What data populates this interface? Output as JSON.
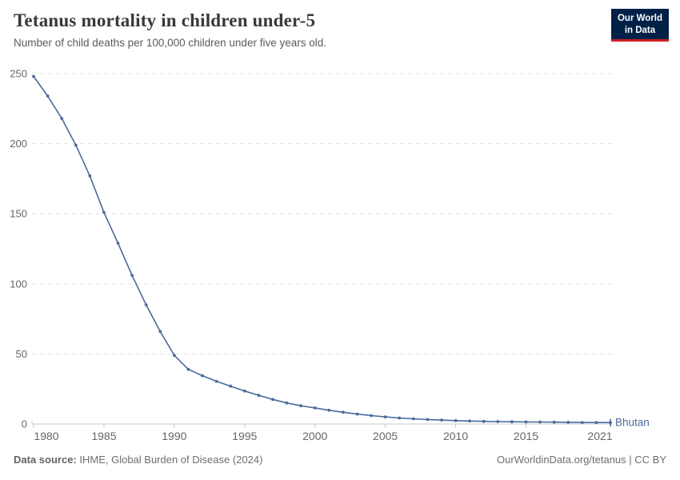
{
  "header": {
    "title": "Tetanus mortality in children under-5",
    "subtitle": "Number of child deaths per 100,000 children under five years old.",
    "logo": {
      "line1": "Our World",
      "line2": "in Data"
    }
  },
  "footer": {
    "source_label": "Data source:",
    "source_text": " IHME, Global Burden of Disease (2024)",
    "link_text": "OurWorldinData.org/tetanus | CC BY"
  },
  "colors": {
    "line": "#4c6a9c",
    "entity_label": "#4c6a9c",
    "grid": "#e2e2e2",
    "axis": "#cbcbcb",
    "tick_text": "#666666",
    "title_text": "#383838",
    "subtitle_text": "#5b5b5b",
    "logo_bg": "#002147",
    "logo_accent": "#cb2026"
  },
  "chart_data": {
    "type": "line",
    "title": "Tetanus mortality in children under-5",
    "subtitle": "Number of child deaths per 100,000 children under five years old.",
    "xlabel": "",
    "ylabel": "",
    "xlim": [
      1980,
      2021
    ],
    "ylim": [
      0,
      250
    ],
    "xticks": [
      1980,
      1985,
      1990,
      1995,
      2000,
      2005,
      2010,
      2015,
      2021
    ],
    "yticks": [
      0,
      50,
      100,
      150,
      200,
      250
    ],
    "grid": "horizontal-dashed",
    "legend_position": "end-of-line-label",
    "x": [
      1980,
      1981,
      1982,
      1983,
      1984,
      1985,
      1986,
      1987,
      1988,
      1989,
      1990,
      1991,
      1992,
      1993,
      1994,
      1995,
      1996,
      1997,
      1998,
      1999,
      2000,
      2001,
      2002,
      2003,
      2004,
      2005,
      2006,
      2007,
      2008,
      2009,
      2010,
      2011,
      2012,
      2013,
      2014,
      2015,
      2016,
      2017,
      2018,
      2019,
      2020,
      2021
    ],
    "series": [
      {
        "name": "Bhutan",
        "color": "#4c6a9c",
        "values": [
          248,
          234,
          218,
          199,
          177,
          151,
          129,
          106,
          85,
          66,
          49,
          39,
          34.5,
          30.5,
          27,
          23.5,
          20.5,
          17.5,
          15,
          13,
          11.5,
          9.8,
          8.4,
          7.1,
          6,
          5.1,
          4.3,
          3.7,
          3.2,
          2.8,
          2.4,
          2.1,
          1.9,
          1.7,
          1.6,
          1.5,
          1.4,
          1.3,
          1.2,
          1.1,
          1.05,
          1
        ]
      }
    ]
  }
}
